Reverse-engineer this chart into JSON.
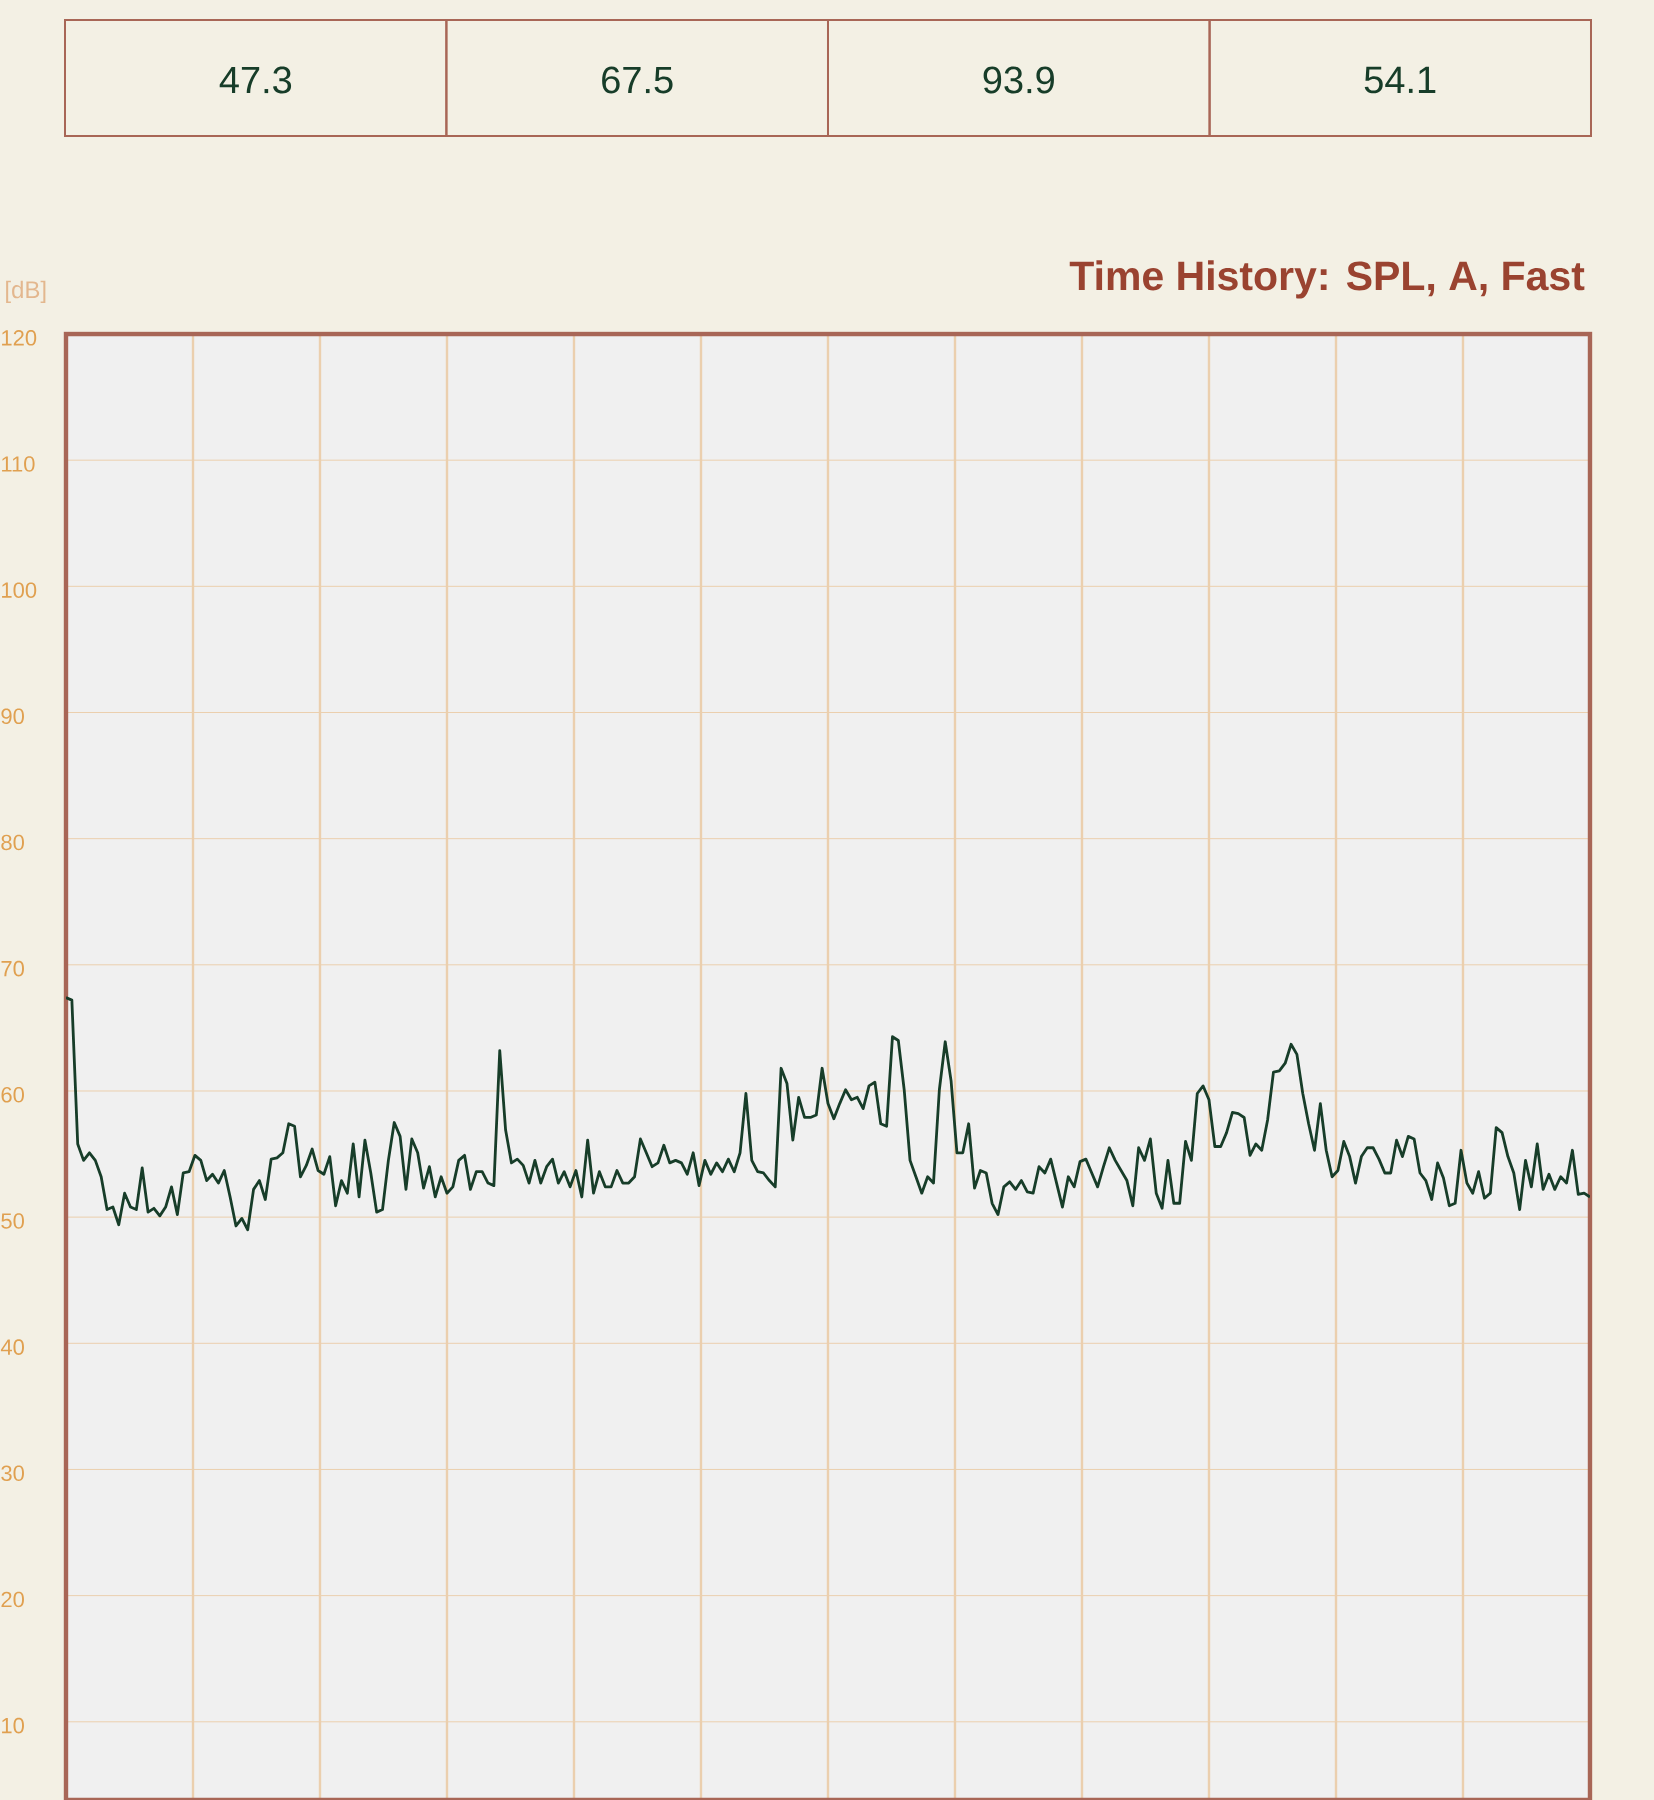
{
  "chart_data": {
    "type": "line",
    "title": "Time History: SPL, A, Fast",
    "ylabel": "[dB]",
    "annotations": [
      "47.3",
      "67.5",
      "93.9",
      "54.1"
    ],
    "categories": [
      null,
      null,
      null,
      null,
      null,
      null,
      null,
      null,
      null,
      null,
      null,
      null,
      null,
      null,
      null,
      null,
      null,
      null,
      null,
      null,
      null,
      null,
      null,
      null,
      null,
      null,
      null,
      null,
      null,
      null,
      null,
      null,
      null,
      null,
      null,
      null,
      null,
      null,
      null,
      null,
      null,
      null,
      null,
      null,
      null,
      null,
      null,
      null,
      null,
      null,
      null,
      null,
      null,
      null,
      null,
      null,
      null,
      null,
      null,
      null,
      null,
      null,
      null,
      null,
      null,
      null,
      null,
      null,
      null,
      null,
      null,
      null,
      null,
      null,
      null,
      null,
      null,
      null,
      null,
      null,
      null,
      null,
      null,
      null,
      null,
      null,
      null,
      null,
      null,
      null,
      null,
      null,
      null,
      null,
      null,
      null,
      null,
      null,
      null,
      null,
      null,
      null,
      null,
      null,
      null,
      null,
      null,
      null,
      null,
      null,
      null,
      null,
      null,
      null,
      null,
      null,
      null,
      null,
      null,
      null,
      null,
      null,
      null,
      null,
      null,
      null,
      null,
      null,
      null,
      null,
      null,
      null,
      null,
      null,
      null,
      null,
      null,
      null,
      null,
      null,
      null,
      null,
      null,
      null,
      null,
      null,
      null,
      null,
      null,
      null,
      null,
      null,
      null,
      null,
      null,
      null,
      null,
      null,
      null,
      null,
      null,
      null,
      null,
      null,
      null,
      null,
      null,
      null,
      null,
      null,
      null,
      null,
      null,
      null,
      null,
      null,
      null,
      null,
      null,
      null,
      null,
      null,
      null,
      null,
      null,
      null,
      null,
      null,
      null,
      null,
      null,
      null,
      null,
      null,
      null,
      null,
      null,
      null,
      null,
      null,
      null,
      null,
      null,
      null,
      null,
      null,
      null,
      null,
      null,
      null,
      null,
      null,
      null,
      null,
      null,
      null,
      null,
      null,
      null,
      null,
      null,
      null,
      null,
      null,
      null,
      null,
      null,
      null,
      null,
      null,
      null,
      null,
      null,
      null,
      null,
      null,
      null,
      null,
      null,
      null,
      null,
      null,
      null,
      null,
      null,
      null,
      null,
      null,
      null,
      null,
      null,
      null,
      null,
      null,
      null,
      null,
      null,
      null,
      null,
      null,
      null
    ],
    "values": [
      67.4,
      67.2,
      55.8,
      54.5,
      55.1,
      54.5,
      53.2,
      50.6,
      50.8,
      49.4,
      51.9,
      50.8,
      50.6,
      53.9,
      50.4,
      50.7,
      50.1,
      50.8,
      52.4,
      50.2,
      53.5,
      53.6,
      54.9,
      54.5,
      52.9,
      53.4,
      52.7,
      53.7,
      51.6,
      49.3,
      49.9,
      49.0,
      52.2,
      52.9,
      51.4,
      54.6,
      54.7,
      55.1,
      57.4,
      57.2,
      53.2,
      54.1,
      55.4,
      53.7,
      53.4,
      54.8,
      50.9,
      52.9,
      51.9,
      55.8,
      51.6,
      56.1,
      53.5,
      50.4,
      50.6,
      54.5,
      57.5,
      56.4,
      52.2,
      56.2,
      55.1,
      52.3,
      54.0,
      51.6,
      53.2,
      51.9,
      52.4,
      54.5,
      54.9,
      52.2,
      53.6,
      53.6,
      52.7,
      52.5,
      63.2,
      56.9,
      54.3,
      54.6,
      54.1,
      52.7,
      54.5,
      52.7,
      54.0,
      54.6,
      52.7,
      53.6,
      52.4,
      53.7,
      51.6,
      56.1,
      51.9,
      53.6,
      52.4,
      52.4,
      53.7,
      52.7,
      52.7,
      53.2,
      56.2,
      55.1,
      54.0,
      54.3,
      55.7,
      54.3,
      54.5,
      54.3,
      53.4,
      55.1,
      52.5,
      54.5,
      53.4,
      54.3,
      53.6,
      54.6,
      53.6,
      55.1,
      59.8,
      54.5,
      53.6,
      53.5,
      52.9,
      52.4,
      61.8,
      60.6,
      56.1,
      59.5,
      57.9,
      57.9,
      58.1,
      61.8,
      59.0,
      57.8,
      59.0,
      60.1,
      59.3,
      59.5,
      58.6,
      60.4,
      60.7,
      57.4,
      57.2,
      64.3,
      64.0,
      60.1,
      54.5,
      53.2,
      51.9,
      53.2,
      52.7,
      60.1,
      63.9,
      60.8,
      55.1,
      55.1,
      57.4,
      52.3,
      53.7,
      53.5,
      51.1,
      50.2,
      52.4,
      52.8,
      52.2,
      52.9,
      52.0,
      51.9,
      54.0,
      53.5,
      54.6,
      52.7,
      50.8,
      53.2,
      52.4,
      54.4,
      54.6,
      53.5,
      52.4,
      54.0,
      55.5,
      54.5,
      53.7,
      52.9,
      50.9,
      55.5,
      54.5,
      56.2,
      51.9,
      50.7,
      54.5,
      51.1,
      51.1,
      56.0,
      54.5,
      59.8,
      60.4,
      59.3,
      55.6,
      55.6,
      56.7,
      58.3,
      58.2,
      57.9,
      54.9,
      55.8,
      55.3,
      57.7,
      61.5,
      61.6,
      62.2,
      63.7,
      62.9,
      59.8,
      57.4,
      55.3,
      59.0,
      55.3,
      53.2,
      53.7,
      56.0,
      54.8,
      52.7,
      54.8,
      55.5,
      55.5,
      54.6,
      53.5,
      53.5,
      56.1,
      54.8,
      56.4,
      56.2,
      53.5,
      52.9,
      51.4,
      54.3,
      53.1,
      50.9,
      51.1,
      55.3,
      52.7,
      51.9,
      53.6,
      51.5,
      51.9,
      57.1,
      56.7,
      54.8,
      53.5,
      50.6,
      54.5,
      52.4,
      55.8,
      52.2,
      53.4,
      52.2,
      53.2,
      52.7,
      55.3,
      51.8,
      51.9,
      51.6
    ],
    "color": "#173d29",
    "ylim": [
      3.8,
      120
    ],
    "yticks": [
      10,
      20,
      30,
      40,
      50,
      60,
      70,
      80,
      90,
      100,
      110,
      120
    ],
    "grid": true
  }
}
